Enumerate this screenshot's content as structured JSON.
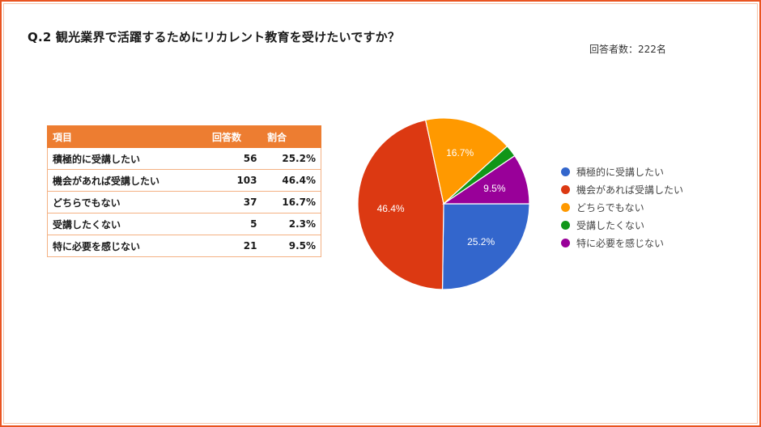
{
  "title": "Q.2 観光業界で活躍するためにリカレント教育を受けたいですか？",
  "respondents": "回答者数：222名",
  "table": {
    "headers": [
      "項目",
      "回答数",
      "割合"
    ],
    "rows": [
      {
        "item": "積極的に受講したい",
        "count": "56",
        "ratio": "25.2%"
      },
      {
        "item": "機会があれば受講したい",
        "count": "103",
        "ratio": "46.4%"
      },
      {
        "item": "どちらでもない",
        "count": "37",
        "ratio": "16.7%"
      },
      {
        "item": "受講したくない",
        "count": "5",
        "ratio": "2.3%"
      },
      {
        "item": "特に必要を感じない",
        "count": "21",
        "ratio": "9.5%"
      }
    ]
  },
  "colors": {
    "border": "#e95420",
    "table_header": "#ed7d31",
    "table_border": "#f4b183"
  },
  "chart_data": {
    "type": "pie",
    "title": "Q.2 観光業界で活躍するためにリカレント教育を受けたいですか？",
    "categories": [
      "積極的に受講したい",
      "機会があれば受講したい",
      "どちらでもない",
      "受講したくない",
      "特に必要を感じない"
    ],
    "values": [
      56,
      103,
      37,
      5,
      21
    ],
    "percentages": [
      25.2,
      46.4,
      16.7,
      2.3,
      9.5
    ],
    "slice_labels": [
      "25.2%",
      "46.4%",
      "16.7%",
      "",
      "9.5%"
    ],
    "colors": [
      "#3366cc",
      "#dc3912",
      "#ff9900",
      "#109618",
      "#990099"
    ],
    "legend_position": "right",
    "total": 222
  },
  "legend": [
    {
      "label": "積極的に受講したい",
      "color": "#3366cc"
    },
    {
      "label": "機会があれば受講したい",
      "color": "#dc3912"
    },
    {
      "label": "どちらでもない",
      "color": "#ff9900"
    },
    {
      "label": "受講したくない",
      "color": "#109618"
    },
    {
      "label": "特に必要を感じない",
      "color": "#990099"
    }
  ]
}
